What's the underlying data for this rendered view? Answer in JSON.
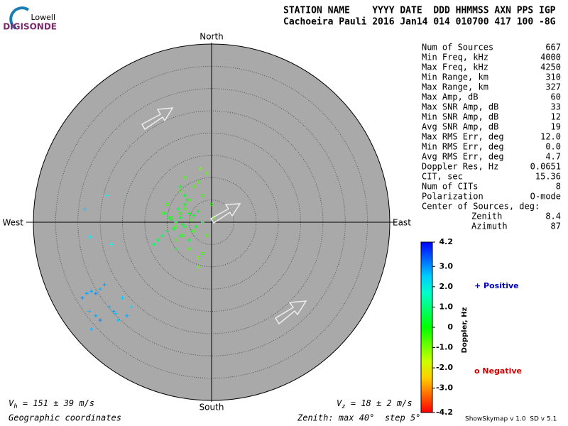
{
  "header": {
    "logo_top": "Lowell",
    "logo_bottom": "DIGISONDE",
    "line1": "STATION NAME    YYYY DATE  DDD HHMMSS AXN PPS IGP",
    "line2": "Cachoeira Pauli 2016 Jan14 014 010700 417 100 -8G"
  },
  "stats": {
    "rows": [
      [
        "Num of Sources",
        "667"
      ],
      [
        "Min Freq, kHz",
        "4000"
      ],
      [
        "Max Freq, kHz",
        "4250"
      ],
      [
        "Min Range, km",
        "310"
      ],
      [
        "Max Range, km",
        "327"
      ],
      [
        "Max Amp, dB",
        "60"
      ],
      [
        "Max SNR Amp, dB",
        "33"
      ],
      [
        "Min SNR Amp, dB",
        "12"
      ],
      [
        "Avg SNR Amp, dB",
        "19"
      ],
      [
        "Max RMS Err, deg",
        "12.0"
      ],
      [
        "Min RMS Err, deg",
        "0.0"
      ],
      [
        "Avg RMS Err, deg",
        "4.7"
      ],
      [
        "Doppler Res, Hz",
        "0.0651"
      ],
      [
        "CIT, sec",
        "15.36"
      ],
      [
        "Num of CITs",
        "8"
      ],
      [
        "Polarization",
        "O-mode"
      ]
    ],
    "center_title": "Center of Sources, deg:",
    "center_rows": [
      [
        "Zenith",
        "8.4"
      ],
      [
        "Azimuth",
        "87"
      ]
    ]
  },
  "chart_data": {
    "type": "skymap",
    "directions": {
      "north": "North",
      "south": "South",
      "west": "West",
      "east": "East"
    },
    "xlim": [
      -40,
      40
    ],
    "ylim": [
      -40,
      40
    ],
    "rings": [
      5,
      10,
      15,
      20,
      25,
      30,
      35,
      40
    ],
    "colorbar": {
      "label": "Doppler, Hz",
      "lim": [
        -4.2,
        4.2
      ],
      "ticks": [
        {
          "value": 4.2,
          "label": "4.2"
        },
        {
          "value": 3,
          "label": "3.0"
        },
        {
          "value": 2,
          "label": "2.0"
        },
        {
          "value": 1,
          "label": "1.0"
        },
        0,
        {
          "value": -1,
          "label": "-1.0"
        },
        {
          "value": -2,
          "label": "-2.0"
        },
        {
          "value": -3,
          "label": "-3.0"
        },
        {
          "value": -4.2,
          "label": "-4.2"
        }
      ]
    },
    "legend": {
      "positive": "+ Positive",
      "negative": "o Negative",
      "positive_color": "#0000c0",
      "negative_color": "#d00000"
    },
    "series": [
      {
        "marker": "+",
        "x": [
          -8,
          -7,
          -6,
          -5,
          -9,
          -10,
          -4,
          -7.5,
          -6.5,
          -8.5,
          -11,
          -12,
          -3,
          -2,
          -6,
          -7,
          -5.5,
          -9.5,
          -13,
          -4.5,
          -8,
          -6,
          -10.5,
          -3.5,
          -7,
          -5,
          -28,
          -27,
          -26,
          -25,
          -24,
          -27.5,
          -26,
          -25,
          -23,
          -20,
          -19,
          -22,
          -21,
          -27,
          -29,
          -18,
          -24,
          -21.5,
          -23.4,
          -28.4,
          -27.3,
          -22.5
        ],
        "y": [
          0,
          1,
          -1,
          2,
          0.5,
          -2,
          1.5,
          3,
          -0.5,
          -1.5,
          -3,
          -4,
          2.5,
          0,
          4,
          -3,
          5,
          1,
          -5,
          -2,
          -6,
          6,
          2,
          -1,
          8,
          -4,
          -16,
          -15.5,
          -16,
          -15,
          -14,
          -20,
          -21,
          -22,
          -19,
          -17,
          -21,
          -20,
          -22,
          -24,
          -17,
          -19,
          -14,
          -20.5,
          6,
          2.9,
          -3.3,
          -5
        ],
        "doppler": [
          0.4,
          0.3,
          0.5,
          0.2,
          0.4,
          0.6,
          0.3,
          0.5,
          0.2,
          0.4,
          0.7,
          0.6,
          0.3,
          0.4,
          0.2,
          0.5,
          0.3,
          0.4,
          0.8,
          0.3,
          0.5,
          0.4,
          0.6,
          0.2,
          0.3,
          0.5,
          2.9,
          2.8,
          3.0,
          2.7,
          2.9,
          2.6,
          2.8,
          3.1,
          2.7,
          2.5,
          2.8,
          2.9,
          2.6,
          2.7,
          3.0,
          2.4,
          2.8,
          2.6,
          2.2,
          2.5,
          2.3,
          2.1
        ]
      },
      {
        "marker": "o",
        "x": [
          -6,
          -5,
          -7,
          -3,
          -1,
          -2,
          0,
          -4,
          -8,
          -9,
          -5,
          -3,
          -6,
          -2,
          -1,
          -4,
          -7,
          -10,
          0.5,
          -3,
          -8,
          -6.5,
          -4.5,
          -11,
          -2.5
        ],
        "y": [
          3,
          5,
          7,
          9,
          11,
          6,
          4,
          -2,
          -4,
          1,
          -6,
          -8,
          10,
          -7,
          -3,
          8,
          2,
          4,
          1,
          -10,
          -1,
          -3,
          0.5,
          2,
          12
        ],
        "doppler": [
          -0.5,
          -0.4,
          -0.6,
          -0.5,
          -0.7,
          -0.4,
          -0.3,
          -0.6,
          -0.5,
          -0.4,
          -0.6,
          -0.8,
          -0.5,
          -0.4,
          -0.6,
          -0.5,
          -0.3,
          -0.4,
          -0.7,
          -0.9,
          -0.5,
          -0.4,
          -0.6,
          -0.5,
          -1.0
        ]
      }
    ]
  },
  "footer": {
    "vh": {
      "symbol": "V",
      "subscript": "h",
      "text": " = 151 ± 39 m/s"
    },
    "vz": {
      "symbol": "V",
      "subscript": "z",
      "text": " = 18 ± 2 m/s"
    },
    "coords": "Geographic coordinates",
    "zenith": "Zenith: max 40°  step 5°",
    "version": "ShowSkymap v 1.0  SD v 5.1"
  }
}
